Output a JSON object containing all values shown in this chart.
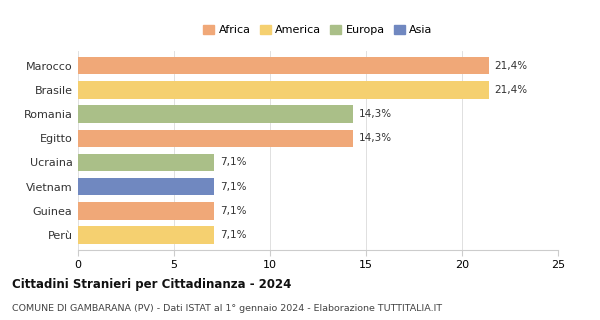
{
  "categories": [
    "Marocco",
    "Brasile",
    "Romania",
    "Egitto",
    "Ucraina",
    "Vietnam",
    "Guinea",
    "Perù"
  ],
  "values": [
    21.4,
    21.4,
    14.3,
    14.3,
    7.1,
    7.1,
    7.1,
    7.1
  ],
  "labels": [
    "21,4%",
    "21,4%",
    "14,3%",
    "14,3%",
    "7,1%",
    "7,1%",
    "7,1%",
    "7,1%"
  ],
  "colors": [
    "#F0A878",
    "#F5D070",
    "#AABF88",
    "#F0A878",
    "#AABF88",
    "#7088C0",
    "#F0A878",
    "#F5D070"
  ],
  "legend": [
    {
      "label": "Africa",
      "color": "#F0A878"
    },
    {
      "label": "America",
      "color": "#F5D070"
    },
    {
      "label": "Europa",
      "color": "#AABF88"
    },
    {
      "label": "Asia",
      "color": "#7088C0"
    }
  ],
  "xlim": [
    0,
    25
  ],
  "xticks": [
    0,
    5,
    10,
    15,
    20,
    25
  ],
  "title_bold": "Cittadini Stranieri per Cittadinanza - 2024",
  "subtitle": "COMUNE DI GAMBARANA (PV) - Dati ISTAT al 1° gennaio 2024 - Elaborazione TUTTITALIA.IT",
  "background_color": "#ffffff"
}
